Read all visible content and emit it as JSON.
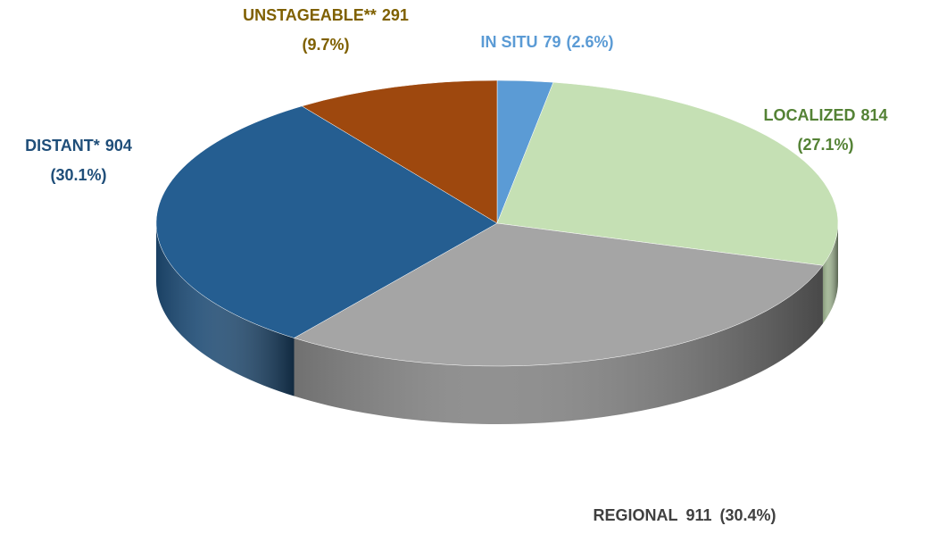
{
  "chart_data": {
    "type": "pie3d",
    "categories": [
      "IN SITU",
      "LOCALIZED",
      "REGIONAL",
      "DISTANT*",
      "UNSTAGEABLE**"
    ],
    "values": [
      79,
      814,
      911,
      904,
      291
    ],
    "percent_values": [
      2.6,
      27.1,
      30.4,
      30.1,
      9.7
    ],
    "percent_labels": [
      "(2.6%)",
      "(27.1%)",
      "(30.4%)",
      "(30.1%)",
      "(9.7%)"
    ],
    "colors": [
      "#5b9bd5",
      "#c5e0b4",
      "#a5a5a5",
      "#255e91",
      "#9e480e"
    ],
    "label_colors": [
      "#5b9bd5",
      "#548235",
      "#404040",
      "#1f4e79",
      "#7f6000"
    ]
  }
}
